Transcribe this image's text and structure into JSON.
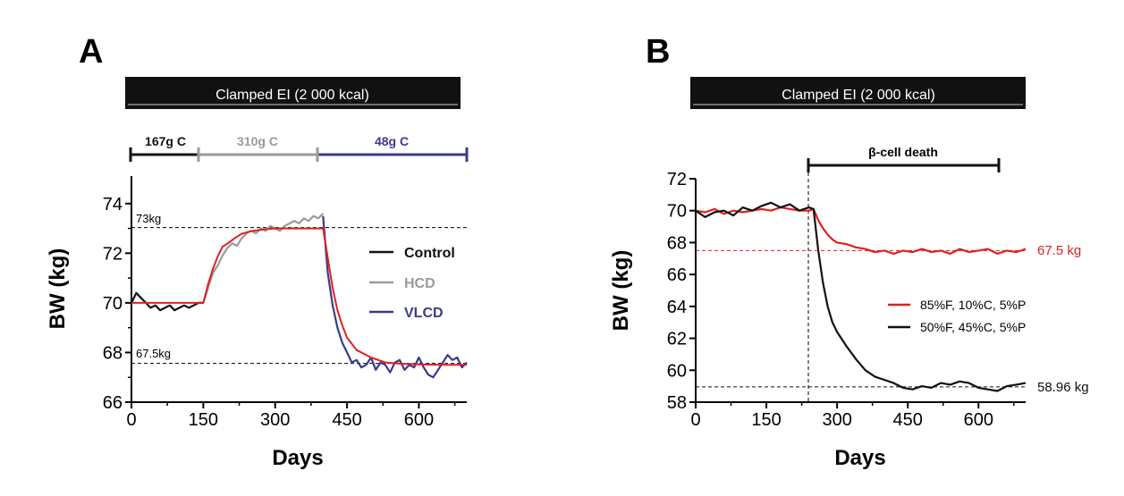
{
  "colors": {
    "control": "#111111",
    "hcd": "#9a9a9a",
    "vlcd": "#3a3a8c",
    "fit": "#e02020",
    "high_fat": "#e02020",
    "low_fat": "#111111",
    "banner": "#111111"
  },
  "panels": [
    {
      "letter": "A",
      "banner": "Clamped EI (2 000 kcal)",
      "phases": [
        {
          "label": "167g C",
          "start": 0,
          "end": 150,
          "color": "#111111"
        },
        {
          "label": "310g C",
          "start": 150,
          "end": 400,
          "color": "#9a9a9a"
        },
        {
          "label": "48g C",
          "start": 400,
          "end": 700,
          "color": "#3a3a8c"
        }
      ],
      "ref_lines": [
        {
          "label": "73kg",
          "value": 73
        },
        {
          "label": "67.5kg",
          "value": 67.5
        }
      ]
    },
    {
      "letter": "B",
      "banner": "Clamped EI (2 000 kcal)",
      "bracket": {
        "label": "β-cell death",
        "start": 250,
        "end": 700
      },
      "end_labels": [
        {
          "label": "67.5 kg",
          "value": 67.5,
          "color": "#e02020"
        },
        {
          "label": "58.96 kg",
          "value": 58.96,
          "color": "#111111"
        }
      ]
    }
  ],
  "chart_data": [
    {
      "type": "line",
      "xlabel": "Days",
      "ylabel": "BW (kg)",
      "xlim": [
        0,
        700
      ],
      "ylim": [
        66,
        75
      ],
      "xticks": [
        0,
        150,
        300,
        450,
        600
      ],
      "yticks": [
        66,
        68,
        70,
        72,
        74
      ],
      "legend_position": "right",
      "grid": false,
      "series": [
        {
          "name": "Control",
          "color": "#111111",
          "x": [
            0,
            10,
            20,
            30,
            40,
            50,
            60,
            70,
            80,
            90,
            100,
            110,
            120,
            130,
            140,
            150
          ],
          "y": [
            70.0,
            70.4,
            70.2,
            70.0,
            69.8,
            69.9,
            69.7,
            69.8,
            69.9,
            69.7,
            69.8,
            69.9,
            69.8,
            69.9,
            70.0,
            70.0
          ]
        },
        {
          "name": "HCD",
          "color": "#9a9a9a",
          "x": [
            150,
            160,
            170,
            180,
            190,
            200,
            210,
            220,
            230,
            240,
            250,
            260,
            270,
            280,
            290,
            300,
            310,
            320,
            330,
            340,
            350,
            360,
            370,
            380,
            390,
            400
          ],
          "y": [
            70.0,
            70.6,
            71.2,
            71.5,
            71.9,
            72.2,
            72.4,
            72.3,
            72.6,
            72.8,
            72.9,
            72.8,
            73.0,
            72.9,
            73.1,
            73.0,
            72.9,
            73.1,
            73.2,
            73.3,
            73.2,
            73.4,
            73.3,
            73.5,
            73.4,
            73.6
          ]
        },
        {
          "name": "VLCD",
          "color": "#3a3a8c",
          "x": [
            400,
            410,
            420,
            430,
            440,
            450,
            460,
            470,
            480,
            490,
            500,
            510,
            520,
            530,
            540,
            550,
            560,
            570,
            580,
            590,
            600,
            610,
            620,
            630,
            640,
            650,
            660,
            670,
            680,
            690,
            700
          ],
          "y": [
            73.5,
            71.2,
            69.9,
            69.0,
            68.4,
            68.0,
            67.6,
            67.7,
            67.4,
            67.5,
            67.8,
            67.3,
            67.6,
            67.5,
            67.2,
            67.6,
            67.7,
            67.3,
            67.5,
            67.4,
            67.8,
            67.4,
            67.1,
            67.0,
            67.3,
            67.6,
            67.9,
            67.7,
            67.8,
            67.4,
            67.6
          ]
        },
        {
          "color": "#e02020",
          "role": "fit",
          "x": [
            0,
            150,
            160,
            170,
            180,
            190,
            200,
            215,
            230,
            250,
            275,
            300,
            340,
            400,
            410,
            420,
            430,
            440,
            450,
            470,
            500,
            530,
            560,
            600,
            650,
            700
          ],
          "y": [
            70.0,
            70.0,
            70.75,
            71.36,
            71.86,
            72.26,
            72.38,
            72.6,
            72.78,
            72.89,
            72.96,
            73.0,
            73.0,
            73.0,
            71.8,
            70.6,
            69.7,
            69.1,
            68.6,
            68.1,
            67.8,
            67.6,
            67.55,
            67.52,
            67.5,
            67.5
          ]
        }
      ]
    },
    {
      "type": "line",
      "xlabel": "Days",
      "ylabel": "BW (kg)",
      "xlim": [
        0,
        700
      ],
      "ylim": [
        58,
        72
      ],
      "xticks": [
        0,
        150,
        300,
        450,
        600
      ],
      "yticks": [
        58,
        60,
        62,
        64,
        66,
        68,
        70,
        72
      ],
      "legend_position": "right",
      "grid": false,
      "series": [
        {
          "name": "85%F, 10%C, 5%P",
          "color": "#e02020",
          "x": [
            0,
            20,
            40,
            60,
            80,
            100,
            120,
            140,
            160,
            180,
            200,
            220,
            240,
            250,
            260,
            270,
            280,
            290,
            300,
            320,
            340,
            360,
            380,
            400,
            420,
            440,
            460,
            480,
            500,
            520,
            540,
            560,
            580,
            600,
            620,
            640,
            660,
            680,
            700
          ],
          "y": [
            70.0,
            69.9,
            70.1,
            69.8,
            70.0,
            69.9,
            70.0,
            70.1,
            70.0,
            70.2,
            70.1,
            70.0,
            70.0,
            70.1,
            69.4,
            68.9,
            68.5,
            68.2,
            68.0,
            67.9,
            67.7,
            67.6,
            67.4,
            67.5,
            67.3,
            67.5,
            67.4,
            67.6,
            67.4,
            67.5,
            67.3,
            67.6,
            67.4,
            67.5,
            67.6,
            67.3,
            67.5,
            67.4,
            67.6
          ]
        },
        {
          "name": "50%F, 45%C, 5%P",
          "color": "#111111",
          "x": [
            0,
            20,
            40,
            60,
            80,
            100,
            120,
            140,
            160,
            180,
            200,
            220,
            240,
            250,
            260,
            270,
            280,
            290,
            300,
            320,
            340,
            360,
            380,
            400,
            420,
            440,
            460,
            480,
            500,
            520,
            540,
            560,
            580,
            600,
            620,
            640,
            660,
            680,
            700
          ],
          "y": [
            70.0,
            69.6,
            69.9,
            70.0,
            69.7,
            70.2,
            70.0,
            70.3,
            70.5,
            70.2,
            70.4,
            70.0,
            70.2,
            70.1,
            67.5,
            65.5,
            64.0,
            63.0,
            62.4,
            61.5,
            60.7,
            60.0,
            59.6,
            59.4,
            59.2,
            58.9,
            58.8,
            59.0,
            58.9,
            59.2,
            59.1,
            59.3,
            59.2,
            58.9,
            58.8,
            58.7,
            59.0,
            59.1,
            59.2
          ]
        },
        {
          "color": "#e02020",
          "role": "reference",
          "x": [
            0,
            700
          ],
          "y": [
            67.5,
            67.5
          ]
        },
        {
          "color": "#111111",
          "role": "reference",
          "x": [
            0,
            700
          ],
          "y": [
            58.96,
            58.96
          ]
        }
      ]
    }
  ]
}
